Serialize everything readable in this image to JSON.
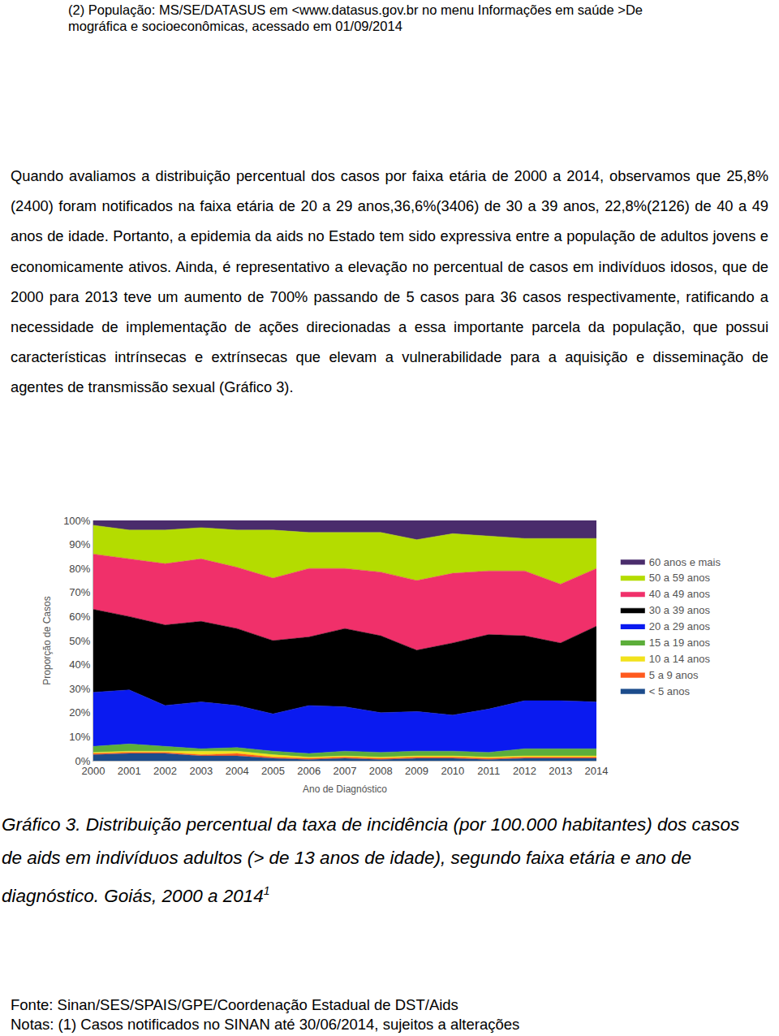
{
  "header": {
    "lines": [
      "(2) População: MS/SE/DATASUS em <www.datasus.gov.br no menu Informações em saúde >De",
      "mográfica e socioeconômicas, acessado em 01/09/2014"
    ]
  },
  "paragraph": "Quando avaliamos a distribuição percentual dos casos por faixa etária de 2000 a 2014, observamos que 25,8%(2400) foram notificados na faixa etária de 20 a 29 anos,36,6%(3406) de 30 a 39 anos, 22,8%(2126) de 40 a 49 anos de idade. Portanto, a epidemia da aids no Estado tem sido expressiva entre a população de adultos jovens e economicamente ativos. Ainda, é representativo a elevação no percentual de casos em indivíduos idosos, que de 2000 para 2013 teve um aumento de 700% passando de 5 casos para 36 casos respectivamente, ratificando a necessidade de implementação de ações direcionadas a essa importante parcela da população, que possui características intrínsecas e extrínsecas que elevam a vulnerabilidade para a aquisição e disseminação de agentes de transmissão sexual (Gráfico 3).",
  "chart_data": {
    "type": "area",
    "stacked": true,
    "grid": false,
    "legend": "right",
    "x_label": "Ano de Diagnóstico",
    "y_label": "Proporção de Casos",
    "x": [
      2000,
      2001,
      2002,
      2003,
      2004,
      2005,
      2006,
      2007,
      2008,
      2009,
      2010,
      2011,
      2012,
      2013,
      2014
    ],
    "xlim": [
      2000,
      2014
    ],
    "xticks": [
      2000,
      2001,
      2002,
      2003,
      2004,
      2005,
      2006,
      2007,
      2008,
      2009,
      2010,
      2011,
      2012,
      2013,
      2014
    ],
    "ylim": [
      0,
      100
    ],
    "yticks": [
      {
        "value": 0,
        "label": "0%"
      },
      {
        "value": 10,
        "label": "10%"
      },
      {
        "value": 20,
        "label": "20%"
      },
      {
        "value": 30,
        "label": "30%"
      },
      {
        "value": 40,
        "label": "40%"
      },
      {
        "value": 50,
        "label": "50%"
      },
      {
        "value": 60,
        "label": "60%"
      },
      {
        "value": 70,
        "label": "70%"
      },
      {
        "value": 80,
        "label": "80%"
      },
      {
        "value": 90,
        "label": "90%"
      },
      {
        "value": 100,
        "label": "100%"
      }
    ],
    "series": [
      {
        "name": "< 5 anos",
        "color": "#1c4c8c",
        "values": [
          2.5,
          3,
          3,
          2,
          2,
          1,
          0.5,
          1,
          0.5,
          1,
          1,
          0.5,
          1,
          1,
          1
        ]
      },
      {
        "name": "5 a 9 anos",
        "color": "#ff5a1e",
        "values": [
          0.5,
          0.5,
          0.5,
          0.5,
          1,
          0.5,
          0.5,
          0.5,
          0.5,
          0.5,
          0.5,
          0.5,
          0.5,
          0.5,
          0.5
        ]
      },
      {
        "name": "10 a 14 anos",
        "color": "#f2e21c",
        "values": [
          0.5,
          0.5,
          0.5,
          1.5,
          1,
          1,
          0.5,
          0.5,
          0.5,
          0.5,
          0.5,
          0.5,
          0.5,
          0.5,
          0.5
        ]
      },
      {
        "name": "15 a 19 anos",
        "color": "#5cae3a",
        "values": [
          2.5,
          3,
          2,
          1,
          1.5,
          1.5,
          1.5,
          2,
          2,
          2,
          2,
          2,
          3,
          3,
          3
        ]
      },
      {
        "name": "20 a 29 anos",
        "color": "#0a1af0",
        "values": [
          22.5,
          22.5,
          17,
          19.5,
          17.5,
          15.5,
          20,
          18.5,
          16.5,
          16.5,
          15,
          18,
          20,
          20,
          19.5
        ]
      },
      {
        "name": "30 a 39 anos",
        "color": "#000000",
        "values": [
          34.5,
          30.5,
          33.5,
          33.5,
          32,
          30.5,
          28.5,
          32.5,
          32,
          25.5,
          30,
          31,
          27,
          24,
          31.5
        ]
      },
      {
        "name": "40 a 49 anos",
        "color": "#f0306a",
        "values": [
          23,
          24,
          25.5,
          26,
          25.5,
          26,
          28.5,
          25,
          26.5,
          29,
          29,
          26.5,
          27,
          24.5,
          24
        ]
      },
      {
        "name": "50 a 59 anos",
        "color": "#b4dc00",
        "values": [
          12,
          12,
          14,
          13,
          15.5,
          20,
          15,
          15,
          16.5,
          17,
          16.5,
          14.5,
          13.5,
          19,
          12.5
        ]
      },
      {
        "name": "60 anos e mais",
        "color": "#4a2c6c",
        "values": [
          2,
          4,
          4,
          3,
          4,
          4,
          5,
          5,
          5,
          8,
          5.5,
          6.5,
          7.5,
          7.5,
          7.5
        ]
      }
    ]
  },
  "caption": {
    "text": "Gráfico 3. Distribuição percentual da taxa de incidência (por 100.000 habitantes) dos casos de aids em indivíduos adultos (> de 13 anos de idade), segundo faixa etária e ano de diagnóstico. Goiás, 2000 a 2014",
    "superscript": "1"
  },
  "footer": {
    "source": "Fonte: Sinan/SES/SPAIS/GPE/Coordenação Estadual de DST/Aids",
    "notes": "Notas: (1) Casos notificados no SINAN até 30/06/2014, sujeitos a alterações"
  }
}
